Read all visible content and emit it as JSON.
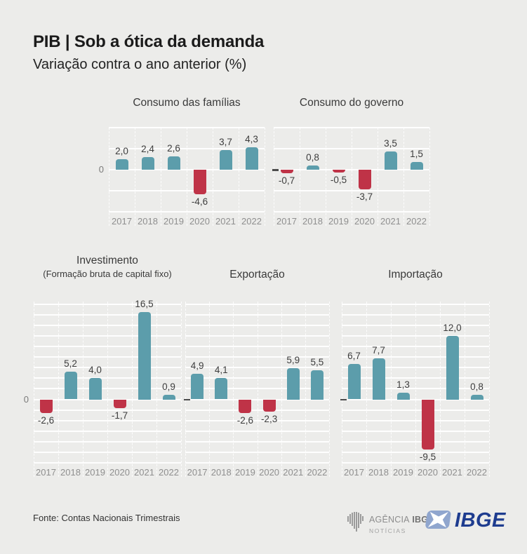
{
  "header": {
    "title": "PIB | Sob a ótica da demanda",
    "subtitle": "Variação contra o ano anterior (%)"
  },
  "colors": {
    "positive_bar": "#5c9dab",
    "negative_bar": "#bf3347",
    "gridline": "#ffffff",
    "background": "#ececea",
    "value_label": "#3d3d3d",
    "year_label": "#8f8f8f",
    "ibge_navy": "#1e3c8f",
    "ibge_light_blue": "#90a6ce"
  },
  "chart_data": [
    {
      "type": "bar",
      "title": "Consumo das famílias",
      "categories": [
        "2017",
        "2018",
        "2019",
        "2020",
        "2021",
        "2022"
      ],
      "values": [
        2.0,
        2.4,
        2.6,
        -4.6,
        3.7,
        4.3
      ],
      "value_labels": [
        "2,0",
        "2,4",
        "2,6",
        "-4,6",
        "3,7",
        "4,3"
      ],
      "ylim": [
        -8,
        8
      ],
      "grid_step": 4,
      "zero_label": "0",
      "zero_tick": false
    },
    {
      "type": "bar",
      "title": "Consumo do governo",
      "categories": [
        "2017",
        "2018",
        "2019",
        "2020",
        "2021",
        "2022"
      ],
      "values": [
        -0.7,
        0.8,
        -0.5,
        -3.7,
        3.5,
        1.5
      ],
      "value_labels": [
        "-0,7",
        "0,8",
        "-0,5",
        "-3,7",
        "3,5",
        "1,5"
      ],
      "ylim": [
        -8,
        8
      ],
      "grid_step": 4,
      "zero_tick": true
    },
    {
      "type": "bar",
      "title": "Investimento",
      "subtitle": "(Formação bruta de capital fixo)",
      "categories": [
        "2017",
        "2018",
        "2019",
        "2020",
        "2021",
        "2022"
      ],
      "values": [
        -2.6,
        5.2,
        4.0,
        -1.7,
        16.5,
        0.9
      ],
      "value_labels": [
        "-2,6",
        "5,2",
        "4,0",
        "-1,7",
        "16,5",
        "0,9"
      ],
      "ylim": [
        -12,
        18.5
      ],
      "grid_step": 2,
      "zero_label": "0",
      "zero_tick": false
    },
    {
      "type": "bar",
      "title": "Exportação",
      "categories": [
        "2017",
        "2018",
        "2019",
        "2020",
        "2021",
        "2022"
      ],
      "values": [
        4.9,
        4.1,
        -2.6,
        -2.3,
        5.9,
        5.5
      ],
      "value_labels": [
        "4,9",
        "4,1",
        "-2,6",
        "-2,3",
        "5,9",
        "5,5"
      ],
      "ylim": [
        -12,
        18.5
      ],
      "grid_step": 2,
      "zero_tick": true
    },
    {
      "type": "bar",
      "title": "Importação",
      "categories": [
        "2017",
        "2018",
        "2019",
        "2020",
        "2021",
        "2022"
      ],
      "values": [
        6.7,
        7.7,
        1.3,
        -9.5,
        12.0,
        0.8
      ],
      "value_labels": [
        "6,7",
        "7,7",
        "1,3",
        "-9,5",
        "12,0",
        "0,8"
      ],
      "ylim": [
        -12,
        18.5
      ],
      "grid_step": 2,
      "zero_tick": true
    }
  ],
  "footer": {
    "source": "Fonte: Contas Nacionais Trimestrais",
    "agencia_logo": {
      "word1": "AGÊNCIA",
      "word2": "IBGE",
      "line2": "NOTÍCIAS"
    },
    "ibge_logo_text": "IBGE"
  }
}
